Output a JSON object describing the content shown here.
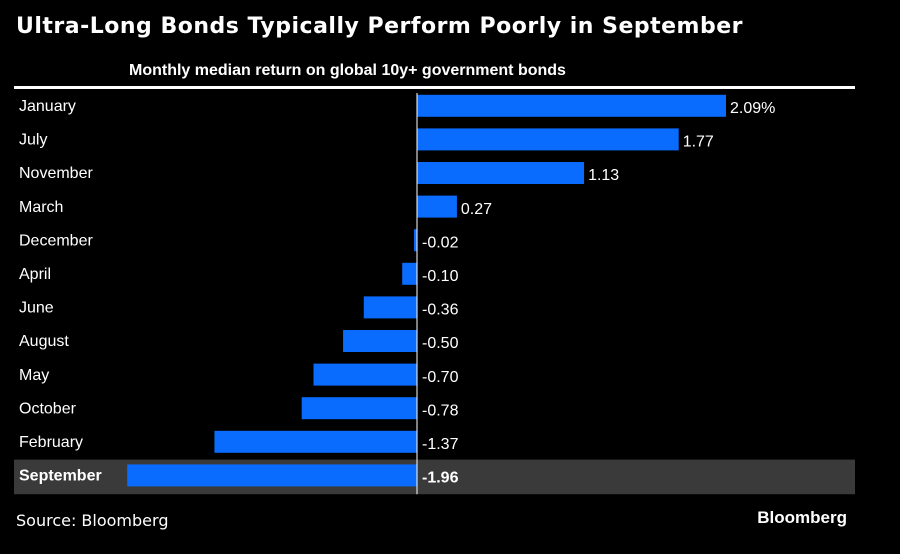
{
  "title": "Ultra-Long Bonds Typically Perform Poorly in September",
  "subtitle": "Monthly median return on global 10y+ government bonds",
  "source": "Source: Bloomberg",
  "brand": "Bloomberg",
  "colors": {
    "bar": "#0a6cff",
    "highlight_row": "#3a3a3a",
    "background": "#000000",
    "text": "#ffffff"
  },
  "chart_data": {
    "type": "bar",
    "orientation": "horizontal",
    "categories": [
      "January",
      "July",
      "November",
      "March",
      "December",
      "April",
      "June",
      "August",
      "May",
      "October",
      "February",
      "September"
    ],
    "values": [
      2.09,
      1.77,
      1.13,
      0.27,
      -0.02,
      -0.1,
      -0.36,
      -0.5,
      -0.7,
      -0.78,
      -1.37,
      -1.96
    ],
    "value_labels": [
      "2.09%",
      "1.77",
      "1.13",
      "0.27",
      "-0.02",
      "-0.10",
      "-0.36",
      "-0.50",
      "-0.70",
      "-0.78",
      "-1.37",
      "-1.96"
    ],
    "highlighted_category": "September",
    "title": "Ultra-Long Bonds Typically Perform Poorly in September",
    "subtitle": "Monthly median return on global 10y+ government bonds",
    "xlim": [
      -1.96,
      2.09
    ],
    "grid": false
  }
}
